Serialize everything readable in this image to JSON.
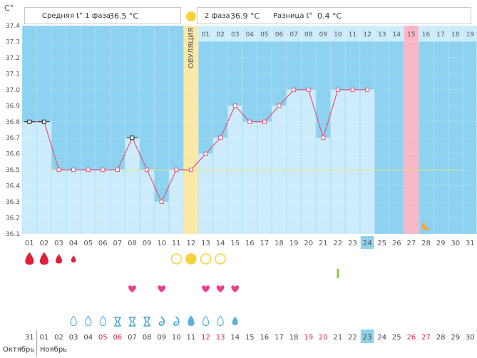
{
  "chart_data": {
    "type": "line",
    "y_axis": {
      "unit": "С°",
      "ticks": [
        "37.4",
        "37.3",
        "37.2",
        "37.1",
        "37.0",
        "36.9",
        "36.8",
        "36.7",
        "36.6",
        "36.5",
        "36.4",
        "36.3",
        "36.2",
        "36.1"
      ],
      "min": 36.1,
      "max": 37.4
    },
    "days": [
      "01",
      "02",
      "03",
      "04",
      "05",
      "06",
      "07",
      "08",
      "09",
      "10",
      "11",
      "12",
      "13",
      "14",
      "15",
      "16",
      "17",
      "18",
      "19",
      "20",
      "21",
      "22",
      "23",
      "24",
      "25",
      "26",
      "27",
      "28",
      "29",
      "30",
      "31"
    ],
    "temperatures": [
      36.8,
      36.8,
      36.5,
      36.5,
      36.5,
      36.5,
      36.5,
      36.7,
      36.5,
      36.3,
      36.5,
      36.5,
      36.6,
      36.7,
      36.9,
      36.8,
      36.8,
      36.9,
      37.0,
      37.0,
      36.7,
      37.0,
      37.0,
      37.0
    ],
    "cover_line": 36.5,
    "ovulation_day": "12",
    "ovulation_label": "ОВУЛЯЦИЯ",
    "phase2_days": [
      "01",
      "02",
      "03",
      "04",
      "05",
      "06",
      "07",
      "08",
      "09",
      "10",
      "11",
      "12",
      "13",
      "14",
      "15",
      "16",
      "17",
      "18",
      "19"
    ],
    "highlight_phase2_day": "15",
    "selected_day": "24",
    "moon_day": "28",
    "phase1_label": "Средняя t° 1 фаза",
    "phase1_value": "36.5 °C",
    "phase2_label": "2 фаза",
    "phase2_value": "36.9 °C",
    "diff_label": "Разница t°",
    "diff_value": "0.4 °C"
  },
  "symbols": {
    "period": [
      {
        "day": "01",
        "size": "l"
      },
      {
        "day": "02",
        "size": "l"
      },
      {
        "day": "03",
        "size": "m"
      },
      {
        "day": "04",
        "size": "s"
      }
    ],
    "ovulation_test": [
      "11",
      "12",
      "13",
      "14"
    ],
    "ovulation_positive": "12",
    "green_bar_day": "22",
    "hearts": [
      "08",
      "10",
      "13",
      "14",
      "15"
    ],
    "mucus": [
      {
        "day": "04",
        "type": "drop"
      },
      {
        "day": "05",
        "type": "drop"
      },
      {
        "day": "06",
        "type": "drop"
      },
      {
        "day": "07",
        "type": "hourglass"
      },
      {
        "day": "08",
        "type": "hourglass"
      },
      {
        "day": "09",
        "type": "hourglass"
      },
      {
        "day": "10",
        "type": "swirl"
      },
      {
        "day": "11",
        "type": "swirl"
      },
      {
        "day": "12",
        "type": "drop-filled"
      },
      {
        "day": "13",
        "type": "drop"
      },
      {
        "day": "14",
        "type": "drop"
      },
      {
        "day": "15",
        "type": "drop-small"
      }
    ]
  },
  "calendar": {
    "dates": [
      "31",
      "01",
      "02",
      "03",
      "04",
      "05",
      "06",
      "07",
      "08",
      "09",
      "10",
      "11",
      "12",
      "13",
      "14",
      "15",
      "16",
      "17",
      "18",
      "19",
      "20",
      "21",
      "22",
      "23",
      "24",
      "25",
      "26",
      "27",
      "28",
      "29",
      "30"
    ],
    "weekend_dates": [
      "05",
      "06",
      "12",
      "13",
      "19",
      "20",
      "26",
      "27"
    ],
    "today": "23",
    "month_prev": "Октябрь",
    "month_next": "Ноябрь"
  },
  "colors": {
    "chart_bg": "#8dd2f0",
    "bar_fill": "#cdecfb",
    "line": "#e0557a",
    "ovulation_band": "#fbe9a6",
    "highlight": "#f8b6c7",
    "today": "#8fd1ec",
    "weekend": "#d6244c"
  }
}
